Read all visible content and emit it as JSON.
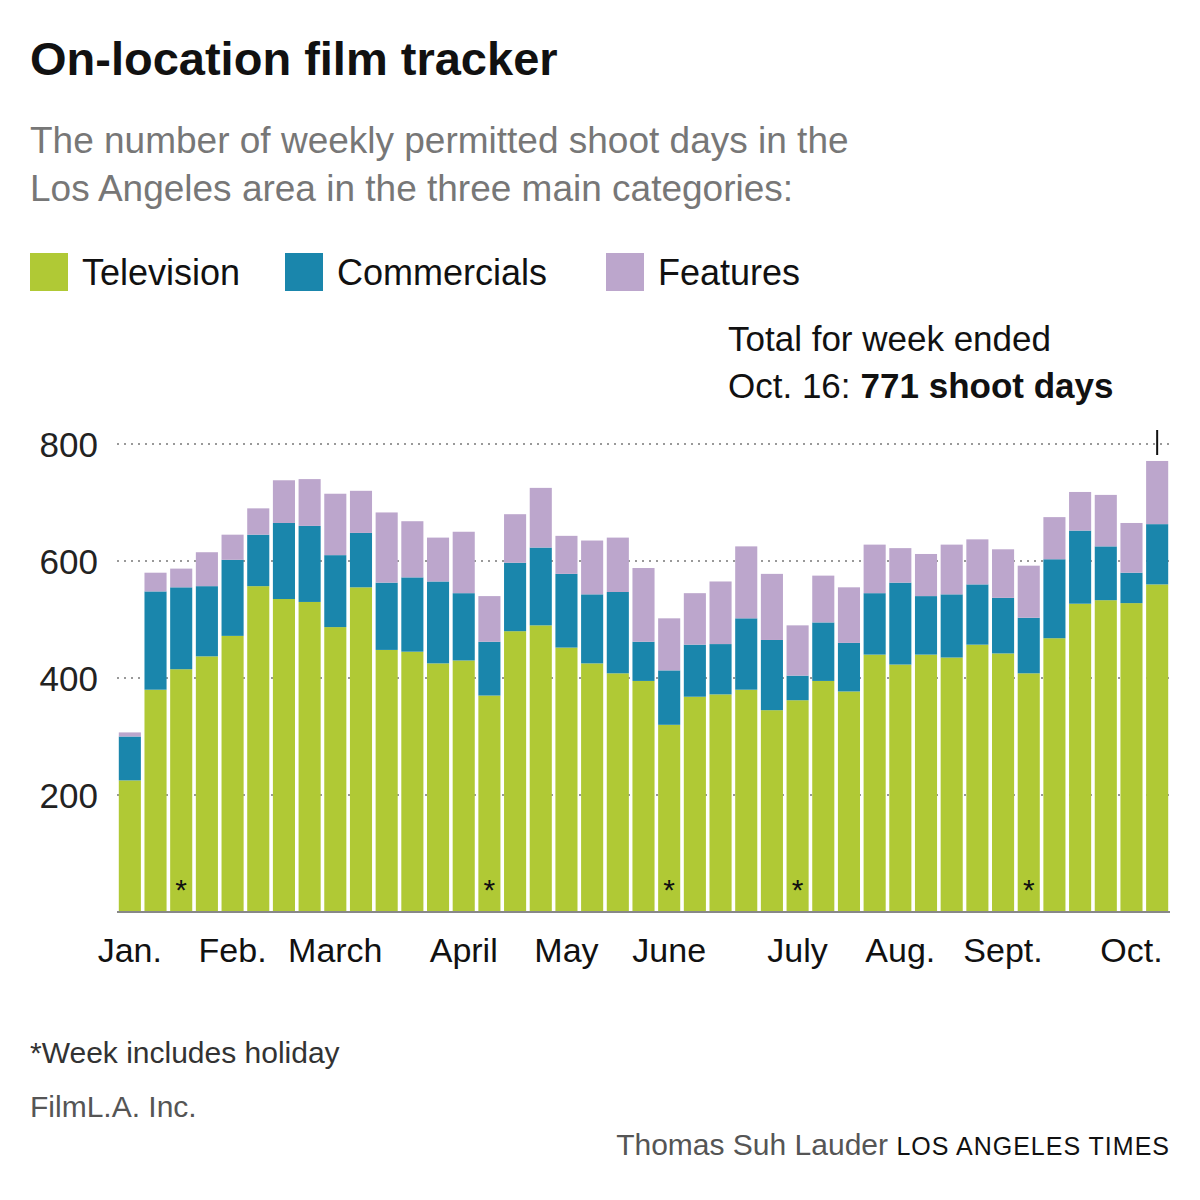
{
  "chart_data": {
    "type": "bar",
    "stacked": true,
    "title": "On-location film tracker",
    "subtitle": [
      "The number of weekly permitted shoot days in the",
      "Los Angeles area in the three main categories:"
    ],
    "annotation": {
      "lines": [
        "Total for week ended",
        "Oct. 16:"
      ],
      "highlight": "771 shoot days"
    },
    "footnote": "*Week includes holiday",
    "source": "FilmL.A. Inc.",
    "credit": "Thomas Suh Lauder",
    "publisher": "LOS ANGELES TIMES",
    "legend": "top-left",
    "grid": true,
    "ylim": [
      0,
      800
    ],
    "yticks": [
      200,
      400,
      600,
      800
    ],
    "categories": [
      "Jan.",
      null,
      null,
      null,
      "Feb.",
      null,
      null,
      null,
      "March",
      null,
      null,
      null,
      null,
      "April",
      null,
      null,
      null,
      "May",
      null,
      null,
      null,
      "June",
      null,
      null,
      null,
      null,
      "July",
      null,
      null,
      null,
      "Aug.",
      null,
      null,
      null,
      "Sept.",
      null,
      null,
      null,
      null,
      "Oct.",
      null
    ],
    "holiday_marks": [
      null,
      null,
      "*",
      null,
      null,
      null,
      null,
      null,
      null,
      null,
      null,
      null,
      null,
      null,
      "*",
      null,
      null,
      null,
      null,
      null,
      null,
      "*",
      null,
      null,
      null,
      null,
      "*",
      null,
      null,
      null,
      null,
      null,
      null,
      null,
      null,
      "*",
      null,
      null,
      null,
      null,
      null
    ],
    "series": [
      {
        "name": "Television",
        "color": "#b0c935",
        "values": [
          225,
          380,
          415,
          437,
          472,
          557,
          535,
          530,
          487,
          555,
          448,
          445,
          425,
          430,
          370,
          480,
          490,
          452,
          425,
          408,
          395,
          320,
          368,
          372,
          380,
          345,
          362,
          395,
          377,
          440,
          423,
          440,
          435,
          457,
          442,
          408,
          468,
          527,
          533,
          528,
          560
        ]
      },
      {
        "name": "Commercials",
        "color": "#1a86ac",
        "values": [
          75,
          168,
          140,
          120,
          130,
          88,
          130,
          130,
          123,
          93,
          115,
          127,
          140,
          115,
          92,
          117,
          133,
          126,
          118,
          139,
          67,
          93,
          89,
          86,
          122,
          120,
          42,
          100,
          83,
          105,
          140,
          100,
          108,
          103,
          95,
          95,
          135,
          125,
          92,
          52,
          103
        ]
      },
      {
        "name": "Features",
        "color": "#bca6cc",
        "values": [
          7,
          32,
          32,
          58,
          43,
          45,
          73,
          80,
          105,
          72,
          120,
          96,
          75,
          105,
          78,
          83,
          102,
          65,
          92,
          93,
          126,
          89,
          88,
          107,
          123,
          113,
          86,
          80,
          95,
          83,
          59,
          72,
          85,
          77,
          83,
          89,
          72,
          66,
          88,
          85,
          108
        ]
      }
    ]
  }
}
